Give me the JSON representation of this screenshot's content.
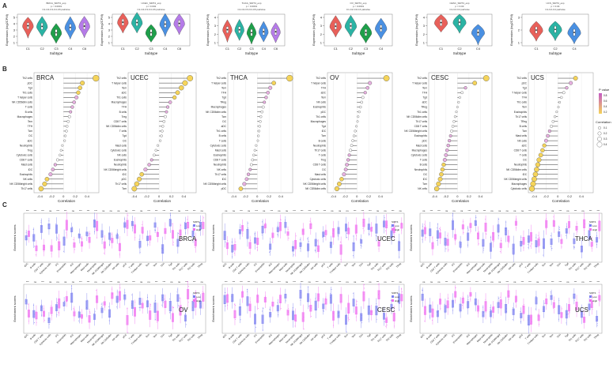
{
  "panel_labels": [
    "A",
    "B",
    "C"
  ],
  "colors": {
    "C1": "#e8605a",
    "C2": "#2bb3a4",
    "C3": "#1e9f4a",
    "C4": "#4a90e2",
    "C5": "#b57be8",
    "C6": "#b57be8",
    "low": "#7b7ff0",
    "high": "#f06ef0",
    "grad_hi": "#f5d45a",
    "grad_lo": "#c45ac4"
  },
  "violins": [
    {
      "cancer": "BRCA",
      "stats": "BRCA_SIRT4_exp",
      "pval": "p < 0.0001",
      "pval2": "C1-C2-C3-C4-C6 pairwise",
      "subtypes": [
        "C1",
        "C2",
        "C3",
        "C4",
        "C6"
      ],
      "ylabel": "Expression (log2CPM)",
      "xlabel": "Subtype",
      "yticks": [
        "1",
        "2",
        "3",
        "4",
        "5"
      ]
    },
    {
      "cancer": "UCEC",
      "stats": "UCEC_SIRT4_exp",
      "pval": "p = 0.002",
      "pval2": "C1-C2-C3-C4-C6 pairwise",
      "subtypes": [
        "C1",
        "C2",
        "C3",
        "C4",
        "C6"
      ],
      "ylabel": "Expression (log2CPM)",
      "xlabel": "Subtype",
      "yticks": [
        "1",
        "2",
        "3",
        "4",
        "5"
      ]
    },
    {
      "cancer": "THCA",
      "stats": "THCA_SIRT4_exp",
      "pval": "p < 0.0001",
      "pval2": "C1-C2-C3-C4-C6 pairwise",
      "subtypes": [
        "C1",
        "C2",
        "C3",
        "C4",
        "C6"
      ],
      "ylabel": "Expression (log2CPM)",
      "xlabel": "Subtype",
      "yticks": [
        "1",
        "2",
        "3",
        "4"
      ]
    },
    {
      "cancer": "OV",
      "stats": "OV_SIRT4_exp",
      "pval": "p < 0.0001",
      "pval2": "C1-C2-C3-C4 pairwise",
      "subtypes": [
        "C1",
        "C2",
        "C3",
        "C4"
      ],
      "ylabel": "Expression (log2CPM)",
      "xlabel": "Subtype",
      "yticks": [
        "1",
        "2",
        "3",
        "4"
      ]
    },
    {
      "cancer": "CESC",
      "stats": "CESC_SIRT4_exp",
      "pval": "p = 0.03",
      "pval2": "C1-C2-C4 pairwise",
      "subtypes": [
        "C1",
        "C2",
        "C4"
      ],
      "ylabel": "Expression (log2CPM)",
      "xlabel": "Subtype",
      "yticks": [
        "1",
        "2",
        "3",
        "4"
      ]
    },
    {
      "cancer": "UCS",
      "stats": "UCS_SIRT4_exp",
      "pval": "p = 0.04",
      "pval2": "C1-C2-C4 pairwise",
      "subtypes": [
        "C1",
        "C2",
        "C4"
      ],
      "ylabel": "Expression (log2CPM)",
      "xlabel": "Subtype",
      "yticks": [
        "1",
        "2",
        "3"
      ]
    }
  ],
  "chart_data": [
    {
      "type": "lollipop",
      "title": "BRCA",
      "xlabel": "Correlation",
      "xlim": [
        -0.5,
        0.6
      ],
      "xticks": [
        "-0.4",
        "-0.2",
        "0",
        "0.2",
        "0.4"
      ],
      "categories": [
        "Th2 cells",
        "pDC",
        "Tgd",
        "Th1 cells",
        "T helper cells",
        "NK CD56dim cells",
        "T cells",
        "B cells",
        "Macrophages",
        "Tem",
        "TFH",
        "Tcm",
        "DC",
        "aDC",
        "Neutrophils",
        "Treg",
        "Cytotoxic cells",
        "CD8 T cells",
        "Mast cells",
        "iDC",
        "Eosinophils",
        "NK cells",
        "NK CD56bright cells",
        "Th17 cells"
      ],
      "values": [
        0.55,
        0.32,
        0.28,
        0.25,
        0.22,
        0.18,
        0.15,
        0.12,
        0.1,
        0.08,
        0.06,
        0.05,
        0.03,
        0.02,
        -0.02,
        -0.04,
        -0.06,
        -0.1,
        -0.14,
        -0.18,
        -0.22,
        -0.28,
        -0.32,
        -0.38
      ]
    },
    {
      "type": "lollipop",
      "title": "UCEC",
      "xlabel": "Correlation",
      "xlim": [
        -0.5,
        0.6
      ],
      "xticks": [
        "-0.4",
        "-0.2",
        "0",
        "0.2",
        "0.4"
      ],
      "categories": [
        "Th2 cells",
        "T helper cells",
        "Tem",
        "aDC",
        "Th1 cells",
        "Macrophages",
        "TFH",
        "B cells",
        "Treg",
        "CD8 T cells",
        "NK CD56dim cells",
        "T cells",
        "Tgd",
        "DC",
        "Mast cells",
        "Cytotoxic cells",
        "NK cells",
        "Eosinophils",
        "Neutrophils",
        "NK CD56bright cells",
        "iDC",
        "pDC",
        "Th17 cells",
        "Tcm"
      ],
      "values": [
        0.5,
        0.42,
        0.36,
        0.3,
        0.25,
        0.18,
        0.14,
        0.12,
        0.1,
        0.08,
        0.06,
        0.05,
        0.04,
        0.02,
        -0.02,
        -0.05,
        -0.08,
        -0.12,
        -0.16,
        -0.22,
        -0.28,
        -0.32,
        -0.36,
        -0.4
      ]
    },
    {
      "type": "lollipop",
      "title": "THCA",
      "xlabel": "Correlation",
      "xlim": [
        -0.5,
        0.6
      ],
      "xticks": [
        "-0.4",
        "-0.2",
        "0",
        "0.2",
        "0.4"
      ],
      "categories": [
        "Th2 cells",
        "T helper cells",
        "Tem",
        "TFH",
        "Tgd",
        "TReg",
        "Macrophages",
        "NK CD56dim cells",
        "Tcm",
        "DC",
        "aDC",
        "Th1 cells",
        "B cells",
        "T cells",
        "Cytotoxic cells",
        "Mast cells",
        "Eosinophils",
        "CD8 T cells",
        "Neutrophils",
        "NK cells",
        "Th17 cells",
        "iDC",
        "NK CD56bright cells",
        "pDC"
      ],
      "values": [
        0.55,
        0.28,
        0.22,
        0.18,
        0.15,
        0.12,
        0.1,
        0.08,
        0.06,
        0.05,
        0.04,
        0.03,
        0.02,
        0.01,
        -0.02,
        -0.04,
        -0.06,
        -0.08,
        -0.1,
        -0.12,
        -0.15,
        -0.18,
        -0.22,
        -0.28
      ]
    },
    {
      "type": "lollipop",
      "title": "OV",
      "xlabel": "Correlation",
      "xlim": [
        -0.5,
        0.6
      ],
      "xticks": [
        "-0.4",
        "-0.2",
        "0",
        "0.2",
        "0.4"
      ],
      "categories": [
        "Th2 cells",
        "T helper cells",
        "TFH",
        "aDC",
        "Tem",
        "NK cells",
        "Eosinophils",
        "pDC",
        "Th1 cells",
        "Macrophages",
        "Tgd",
        "iDC",
        "Tcm",
        "B cells",
        "Neutrophils",
        "Th17 cells",
        "T cells",
        "Treg",
        "CD8 T cells",
        "DC",
        "Mast cells",
        "Cytotoxic cells",
        "NK CD56bright cells",
        "NK CD56dim cells"
      ],
      "values": [
        0.5,
        0.22,
        0.18,
        0.14,
        0.1,
        0.08,
        0.06,
        0.04,
        0.02,
        0.01,
        -0.01,
        -0.03,
        -0.05,
        -0.07,
        -0.09,
        -0.11,
        -0.13,
        -0.15,
        -0.17,
        -0.19,
        -0.22,
        -0.26,
        -0.3,
        -0.34
      ]
    },
    {
      "type": "lollipop",
      "title": "CESC",
      "xlabel": "Correlation",
      "xlim": [
        -0.5,
        0.6
      ],
      "xticks": [
        "-0.4",
        "-0.2",
        "0",
        "0.2",
        "0.4"
      ],
      "categories": [
        "Th2 cells",
        "T helper cells",
        "Tem",
        "TFH",
        "Tgd",
        "aDC",
        "TReg",
        "Th1 cells",
        "NK CD56dim cells",
        "Th17 cells",
        "CD8 T cells",
        "NK CD56bright cells",
        "Eosinophils",
        "pDC",
        "Mast cells",
        "Macrophages",
        "Cytotoxic cells",
        "T cells",
        "B cells",
        "Neutrophils",
        "DC",
        "iDC",
        "Tcm",
        "NK cells"
      ],
      "values": [
        0.5,
        0.3,
        0.14,
        0.08,
        0.04,
        0.02,
        0.0,
        -0.02,
        -0.04,
        -0.06,
        -0.08,
        -0.1,
        -0.12,
        -0.14,
        -0.16,
        -0.18,
        -0.2,
        -0.22,
        -0.24,
        -0.26,
        -0.28,
        -0.3,
        -0.33,
        -0.36
      ]
    },
    {
      "type": "lollipop",
      "title": "UCS",
      "xlabel": "Correlation",
      "xlim": [
        -0.5,
        0.6
      ],
      "xticks": [
        "-0.4",
        "-0.2",
        "0",
        "0.2",
        "0.4"
      ],
      "categories": [
        "Th2 cells",
        "pDC",
        "Tgd",
        "T helper cells",
        "TFH",
        "Th1 cells",
        "Tem",
        "Eosinophils",
        "Th17 cells",
        "TReg",
        "B cells",
        "Tcm",
        "Mast cells",
        "NK cells",
        "aDC",
        "CD8 T cells",
        "T cells",
        "DC",
        "Neutrophils",
        "NK CD56dim cells",
        "iDC",
        "NK CD56bright cells",
        "Macrophages",
        "Cytotoxic cells"
      ],
      "values": [
        0.3,
        0.22,
        0.15,
        0.1,
        0.06,
        0.03,
        0.01,
        -0.02,
        -0.05,
        -0.08,
        -0.11,
        -0.14,
        -0.17,
        -0.2,
        -0.23,
        -0.26,
        -0.29,
        -0.32,
        -0.34,
        -0.36,
        -0.38,
        -0.4,
        -0.42,
        -0.44
      ]
    }
  ],
  "lollipop_legend": {
    "title": "P value",
    "grad_ticks": [
      "0.8",
      "0.6",
      "0.4",
      "0.2"
    ],
    "size_title": "Correlation",
    "size_ticks": [
      "0.1",
      "0.2",
      "0.3",
      "0.4"
    ]
  },
  "box_panels": [
    {
      "cancer": "BRCA",
      "ylabel": "Enrichment scores"
    },
    {
      "cancer": "UCEC",
      "ylabel": "Enrichment scores"
    },
    {
      "cancer": "THCA",
      "ylabel": "Enrichment scores"
    },
    {
      "cancer": "OV",
      "ylabel": "Enrichment scores"
    },
    {
      "cancer": "CESC",
      "ylabel": "Enrichment scores"
    },
    {
      "cancer": "UCS",
      "ylabel": "Enrichment scores"
    }
  ],
  "box_legend": {
    "title": "SIRT4",
    "low": "Low",
    "high": "High"
  },
  "box_categories": [
    "aDC",
    "B cells",
    "CD8 T cells",
    "Cytotoxic cells",
    "DC",
    "Eosinophils",
    "iDC",
    "Macrophages",
    "Mast cells",
    "Neutrophils",
    "NK CD56bright",
    "NK CD56dim",
    "NK cells",
    "pDC",
    "T cells",
    "T helper cells",
    "Tcm",
    "Tem",
    "TFH",
    "Tgd",
    "Th1 cells",
    "Th17 cells",
    "Th2 cells",
    "TReg"
  ]
}
